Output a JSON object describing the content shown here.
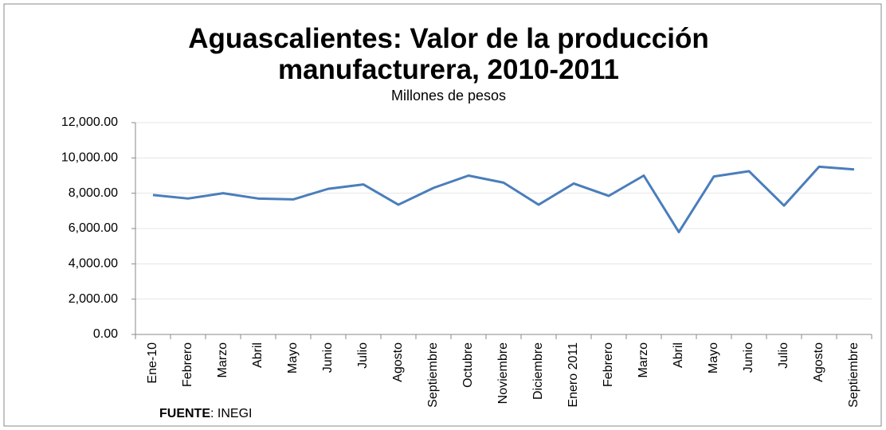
{
  "chart_data": {
    "type": "line",
    "title": "Aguascalientes: Valor de la producción manufacturera, 2010-2011",
    "subtitle": "Millones de pesos",
    "categories": [
      "Ene-10",
      "Febrero",
      "Marzo",
      "Abril",
      "Mayo",
      "Junio",
      "Julio",
      "Agosto",
      "Septiembre",
      "Octubre",
      "Noviembre",
      "Diciembre",
      "Enero 2011",
      "Febrero",
      "Marzo",
      "Abril",
      "Mayo",
      "Junio",
      "Julio",
      "Agosto",
      "Septiembre"
    ],
    "values": [
      7900,
      7700,
      8000,
      7700,
      7650,
      8250,
      8500,
      7350,
      8300,
      9000,
      8600,
      7350,
      8550,
      7850,
      9000,
      5800,
      8950,
      9250,
      7300,
      9500,
      9350
    ],
    "color": "#4a7ebb",
    "ylim": [
      0,
      12000
    ],
    "yticks": [
      {
        "value": 0,
        "label": "0.00"
      },
      {
        "value": 2000,
        "label": "2,000.00"
      },
      {
        "value": 4000,
        "label": "4,000.00"
      },
      {
        "value": 6000,
        "label": "6,000.00"
      },
      {
        "value": 8000,
        "label": "8,000.00"
      },
      {
        "value": 10000,
        "label": "10,000.00"
      },
      {
        "value": 12000,
        "label": "12,000.00"
      }
    ],
    "grid": true,
    "source": {
      "label": "FUENTE",
      "text": ": INEGI"
    }
  }
}
